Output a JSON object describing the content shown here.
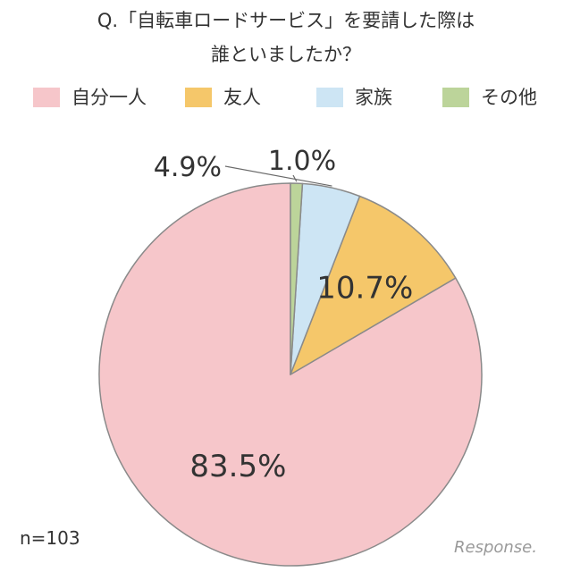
{
  "chart_data": {
    "type": "pie",
    "title": "Q.「自転車ロードサービス」を要請した際は",
    "subtitle": "誰といましたか？",
    "categories": [
      "自分一人",
      "友人",
      "家族",
      "その他"
    ],
    "values": [
      83.5,
      10.7,
      4.9,
      1.0
    ],
    "labels": [
      "83.5%",
      "10.7%",
      "4.9%",
      "1.0%"
    ],
    "colors": [
      "#f6c6ca",
      "#f5c76a",
      "#cde5f4",
      "#bcd49a"
    ],
    "legend_position": "top"
  },
  "sample_size": "n=103",
  "watermark": "Response."
}
